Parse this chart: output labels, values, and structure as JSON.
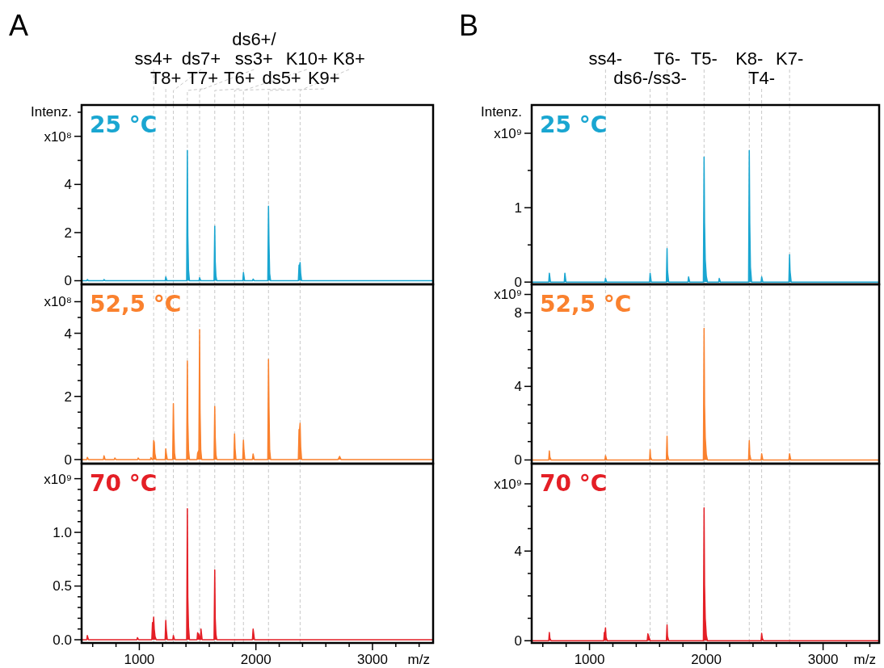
{
  "chart_data": [
    {
      "type": "area",
      "title": "25 °C",
      "ylabel": "Intenz.",
      "annotations": [
        "A"
      ],
      "xlim": [
        505,
        3520
      ],
      "ylim": [
        -0.15,
        7.3
      ],
      "tick_labels": "y",
      "yticks": [
        0,
        {
          "value": 1,
          "label": null
        },
        2,
        {
          "value": 3,
          "label": null
        },
        4,
        {
          "value": 5,
          "label": null
        },
        {
          "value": 6,
          "label": "x10⁸"
        },
        {
          "value": 7,
          "label": null
        }
      ],
      "x": [
        505,
        549,
        554,
        564,
        692,
        697,
        707,
        1222,
        1227,
        1237,
        1406,
        1412,
        1416,
        1422,
        1430,
        1512,
        1517,
        1527,
        1641,
        1647,
        1651,
        1657,
        1665,
        1888,
        1893,
        1903,
        1971,
        1976,
        1986,
        2102,
        2108,
        2112,
        2118,
        2126,
        2364,
        2370,
        2375,
        2379,
        2384,
        2392,
        3520
      ],
      "series": [
        {
          "color": "#1aa6d1",
          "values": [
            0,
            0,
            0.05,
            0,
            0,
            0.05,
            0,
            0,
            0.16,
            0,
            0,
            5.41,
            1.9,
            0.45,
            0,
            0,
            0.13,
            0,
            0,
            2.27,
            0.8,
            0.2,
            0,
            0,
            0.34,
            0,
            0,
            0.07,
            0,
            0,
            3.1,
            1.6,
            0.3,
            0,
            0,
            0.65,
            0.6,
            0.76,
            0.3,
            0,
            0
          ]
        }
      ],
      "ref_lines": [
        {
          "axis": "x",
          "value": 1123,
          "label": "ss4+",
          "color": "#c8c8c8",
          "line_style": "dashed"
        },
        {
          "axis": "x",
          "value": 1227,
          "label": "T8+",
          "color": "#c8c8c8",
          "line_style": "dashed"
        },
        {
          "axis": "x",
          "value": 1292,
          "label": "ds7+",
          "color": "#c8c8c8",
          "line_style": "dashed"
        },
        {
          "axis": "x",
          "value": 1412,
          "label": "T7+",
          "color": "#c8c8c8",
          "line_style": "dashed"
        },
        {
          "axis": "x",
          "value": 1517,
          "label": "ds6+/ ss3+",
          "color": "#c8c8c8",
          "line_style": "dashed"
        },
        {
          "axis": "x",
          "value": 1647,
          "label": "T6+",
          "color": "#c8c8c8",
          "line_style": "dashed"
        },
        {
          "axis": "x",
          "value": 1817,
          "label": "ds5+",
          "color": "#c8c8c8",
          "line_style": "dashed"
        },
        {
          "axis": "x",
          "value": 1893,
          "label": "K10+",
          "color": "#c8c8c8",
          "line_style": "dashed"
        },
        {
          "axis": "x",
          "value": 2108,
          "label": "K9+",
          "color": "#c8c8c8",
          "line_style": "dashed"
        },
        {
          "axis": "x",
          "value": 2379,
          "label": "K8+",
          "color": "#c8c8c8",
          "line_style": "dashed"
        }
      ]
    },
    {
      "type": "area",
      "title": "52,5 °C",
      "xlim": [
        505,
        3520
      ],
      "ylim": [
        -0.13,
        5.55
      ],
      "tick_labels": "y",
      "yticks": [
        0,
        {
          "value": 0.5,
          "label": null
        },
        {
          "value": 1,
          "label": null
        },
        {
          "value": 1.5,
          "label": null
        },
        2,
        {
          "value": 2.5,
          "label": null
        },
        {
          "value": 3,
          "label": null
        },
        {
          "value": 3.5,
          "label": null
        },
        4,
        {
          "value": 4.5,
          "label": null
        },
        {
          "value": 5,
          "label": "x10⁸"
        }
      ],
      "x": [
        505,
        549,
        554,
        564,
        692,
        697,
        707,
        785,
        790,
        800,
        985,
        990,
        1000,
        1095,
        1100,
        1110,
        1117,
        1123,
        1128,
        1133,
        1143,
        1222,
        1227,
        1231,
        1240,
        1286,
        1292,
        1296,
        1302,
        1310,
        1406,
        1412,
        1416,
        1422,
        1430,
        1495,
        1500,
        1511,
        1517,
        1521,
        1527,
        1535,
        1641,
        1647,
        1651,
        1657,
        1665,
        1811,
        1817,
        1821,
        1829,
        1887,
        1893,
        1897,
        1905,
        1970,
        1976,
        1986,
        2102,
        2108,
        2112,
        2118,
        2126,
        2364,
        2370,
        2374,
        2379,
        2384,
        2392,
        2705,
        2718,
        2730,
        3520
      ],
      "series": [
        {
          "color": "#fa812e",
          "values": [
            0,
            0,
            0.07,
            0,
            0,
            0.12,
            0,
            0,
            0.05,
            0,
            0,
            0.05,
            0,
            0,
            0.06,
            0,
            0,
            0.6,
            0.55,
            0.2,
            0,
            0,
            0.34,
            0.2,
            0,
            0,
            1.77,
            0.9,
            0.2,
            0,
            0,
            3.12,
            1.2,
            0.3,
            0,
            0,
            0.2,
            0.3,
            4.12,
            1.5,
            0.3,
            0,
            0,
            1.68,
            0.7,
            0.15,
            0,
            0,
            0.81,
            0.35,
            0,
            0,
            0.61,
            0.3,
            0,
            0,
            0.18,
            0,
            0,
            3.17,
            1.7,
            0.3,
            0,
            0,
            0.95,
            0.9,
            1.15,
            0.4,
            0,
            0,
            0.1,
            0,
            0
          ]
        }
      ],
      "ref_lines": [
        {
          "axis": "x",
          "value": 1123,
          "color": "#c8c8c8",
          "line_style": "dashed"
        },
        {
          "axis": "x",
          "value": 1227,
          "color": "#c8c8c8",
          "line_style": "dashed"
        },
        {
          "axis": "x",
          "value": 1292,
          "color": "#c8c8c8",
          "line_style": "dashed"
        },
        {
          "axis": "x",
          "value": 1412,
          "color": "#c8c8c8",
          "line_style": "dashed"
        },
        {
          "axis": "x",
          "value": 1517,
          "color": "#c8c8c8",
          "line_style": "dashed"
        },
        {
          "axis": "x",
          "value": 1647,
          "color": "#c8c8c8",
          "line_style": "dashed"
        },
        {
          "axis": "x",
          "value": 1817,
          "color": "#c8c8c8",
          "line_style": "dashed"
        },
        {
          "axis": "x",
          "value": 1893,
          "color": "#c8c8c8",
          "line_style": "dashed"
        },
        {
          "axis": "x",
          "value": 2108,
          "color": "#c8c8c8",
          "line_style": "dashed"
        },
        {
          "axis": "x",
          "value": 2379,
          "color": "#c8c8c8",
          "line_style": "dashed"
        }
      ]
    },
    {
      "type": "area",
      "title": "70 °C",
      "xlabel": "m/z",
      "xlim": [
        505,
        3520
      ],
      "ylim": [
        -0.03,
        1.64
      ],
      "xticks": [
        {
          "value": 600,
          "label": null
        },
        {
          "value": 800,
          "label": null
        },
        1000,
        {
          "value": 1200,
          "label": null
        },
        {
          "value": 1400,
          "label": null
        },
        {
          "value": 1600,
          "label": null
        },
        {
          "value": 1800,
          "label": null
        },
        2000,
        {
          "value": 2200,
          "label": null
        },
        {
          "value": 2400,
          "label": null
        },
        {
          "value": 2600,
          "label": null
        },
        {
          "value": 2800,
          "label": null
        },
        3000,
        {
          "value": 3200,
          "label": null
        },
        {
          "value": 3400,
          "label": null
        }
      ],
      "yticks": [
        {
          "value": 0,
          "label": "0.0"
        },
        {
          "value": 0.1,
          "label": null
        },
        {
          "value": 0.2,
          "label": null
        },
        {
          "value": 0.3,
          "label": null
        },
        {
          "value": 0.4,
          "label": null
        },
        {
          "value": 0.5,
          "label": "0.5"
        },
        {
          "value": 0.6,
          "label": null
        },
        {
          "value": 0.7,
          "label": null
        },
        {
          "value": 0.8,
          "label": null
        },
        {
          "value": 0.9,
          "label": null
        },
        {
          "value": 1,
          "label": "1.0"
        },
        {
          "value": 1.1,
          "label": null
        },
        {
          "value": 1.2,
          "label": null
        },
        {
          "value": 1.3,
          "label": null
        },
        {
          "value": 1.4,
          "label": null
        },
        {
          "value": 1.5,
          "label": "x10⁹"
        }
      ],
      "x": [
        505,
        549,
        554,
        564,
        979,
        984,
        994,
        1107,
        1113,
        1118,
        1123,
        1128,
        1135,
        1145,
        1221,
        1227,
        1231,
        1240,
        1287,
        1292,
        1302,
        1406,
        1412,
        1416,
        1422,
        1430,
        1495,
        1500,
        1510,
        1523,
        1529,
        1539,
        1641,
        1647,
        1651,
        1657,
        1665,
        1970,
        1976,
        1988,
        3520
      ],
      "series": [
        {
          "color": "#e41f26",
          "values": [
            0,
            0,
            0.04,
            0,
            0,
            0.02,
            0,
            0,
            0.16,
            0.12,
            0.21,
            0.1,
            0.03,
            0,
            0,
            0.18,
            0.1,
            0,
            0,
            0.04,
            0,
            0,
            1.22,
            0.4,
            0.12,
            0,
            0,
            0.065,
            0.05,
            0,
            0.1,
            0,
            0,
            0.65,
            0.2,
            0.05,
            0,
            0,
            0.1,
            0,
            0
          ]
        }
      ],
      "ref_lines": [
        {
          "axis": "x",
          "value": 1123,
          "color": "#c8c8c8",
          "line_style": "dashed"
        },
        {
          "axis": "x",
          "value": 1227,
          "color": "#c8c8c8",
          "line_style": "dashed"
        },
        {
          "axis": "x",
          "value": 1292,
          "color": "#c8c8c8",
          "line_style": "dashed"
        },
        {
          "axis": "x",
          "value": 1412,
          "color": "#c8c8c8",
          "line_style": "dashed"
        },
        {
          "axis": "x",
          "value": 1517,
          "color": "#c8c8c8",
          "line_style": "dashed"
        },
        {
          "axis": "x",
          "value": 1647,
          "color": "#c8c8c8",
          "line_style": "dashed"
        },
        {
          "axis": "x",
          "value": 1817,
          "color": "#c8c8c8",
          "line_style": "dashed"
        },
        {
          "axis": "x",
          "value": 1893,
          "color": "#c8c8c8",
          "line_style": "dashed"
        },
        {
          "axis": "x",
          "value": 2108,
          "color": "#c8c8c8",
          "line_style": "dashed"
        },
        {
          "axis": "x",
          "value": 2379,
          "color": "#c8c8c8",
          "line_style": "dashed"
        }
      ]
    },
    {
      "type": "area",
      "title": "25 °C",
      "ylabel": "Intenz.",
      "annotations": [
        "B"
      ],
      "xlim": [
        505,
        3480
      ],
      "ylim": [
        -0.03,
        2.38
      ],
      "tick_labels": "y",
      "yticks": [
        0,
        {
          "value": 0.5,
          "label": null
        },
        1,
        {
          "value": 1.5,
          "label": null
        },
        {
          "value": 2,
          "label": "x10⁹"
        }
      ],
      "x": [
        505,
        651,
        656,
        666,
        784,
        789,
        799,
        1132,
        1137,
        1147,
        1514,
        1519,
        1529,
        1658,
        1664,
        1668,
        1678,
        1843,
        1848,
        1858,
        1975,
        1981,
        1985,
        1991,
        2000,
        2010,
        2106,
        2111,
        2121,
        2362,
        2368,
        2372,
        2378,
        2388,
        2469,
        2474,
        2484,
        2707,
        2713,
        2717,
        2727,
        3480
      ],
      "series": [
        {
          "color": "#1aa6d1",
          "values": [
            0,
            0,
            0.12,
            0,
            0,
            0.12,
            0,
            0,
            0.05,
            0,
            0,
            0.12,
            0,
            0,
            0.45,
            0.15,
            0,
            0,
            0.07,
            0,
            0,
            1.68,
            0.8,
            0.3,
            0.08,
            0,
            0,
            0.05,
            0,
            0,
            1.77,
            0.8,
            0.2,
            0,
            0,
            0.07,
            0,
            0,
            0.37,
            0.15,
            0,
            0
          ]
        }
      ],
      "ref_lines": [
        {
          "axis": "x",
          "value": 1137,
          "label": "ss4-",
          "color": "#c8c8c8",
          "line_style": "dashed"
        },
        {
          "axis": "x",
          "value": 1519,
          "label": "ds6-/ss3-",
          "color": "#c8c8c8",
          "line_style": "dashed"
        },
        {
          "axis": "x",
          "value": 1664,
          "label": "T6-",
          "color": "#c8c8c8",
          "line_style": "dashed"
        },
        {
          "axis": "x",
          "value": 1981,
          "label": "T5-",
          "color": "#c8c8c8",
          "line_style": "dashed"
        },
        {
          "axis": "x",
          "value": 2368,
          "label": "K8-",
          "color": "#c8c8c8",
          "line_style": "dashed"
        },
        {
          "axis": "x",
          "value": 2474,
          "label": "T4-",
          "color": "#c8c8c8",
          "line_style": "dashed"
        },
        {
          "axis": "x",
          "value": 2713,
          "label": "K7-",
          "color": "#c8c8c8",
          "line_style": "dashed"
        }
      ]
    },
    {
      "type": "area",
      "title": "52,5 °C",
      "xlim": [
        505,
        3480
      ],
      "ylim": [
        -0.2,
        9.55
      ],
      "tick_labels": "y",
      "yticks": [
        0,
        {
          "value": 1,
          "label": null
        },
        {
          "value": 2,
          "label": null
        },
        {
          "value": 3,
          "label": null
        },
        4,
        {
          "value": 5,
          "label": null
        },
        {
          "value": 6,
          "label": null
        },
        {
          "value": 7,
          "label": null
        },
        8,
        {
          "value": 9,
          "label": "x10⁹"
        }
      ],
      "x": [
        505,
        651,
        656,
        661,
        671,
        1132,
        1137,
        1147,
        1514,
        1519,
        1523,
        1533,
        1658,
        1664,
        1668,
        1678,
        1975,
        1981,
        1985,
        1991,
        2000,
        2010,
        2362,
        2368,
        2372,
        2382,
        2469,
        2474,
        2484,
        2707,
        2713,
        2723,
        3480
      ],
      "series": [
        {
          "color": "#fa812e",
          "values": [
            0,
            0,
            0.49,
            0.15,
            0,
            0,
            0.24,
            0,
            0,
            0.56,
            0.15,
            0,
            0,
            1.29,
            0.3,
            0,
            0,
            7.16,
            3,
            1.2,
            0.3,
            0,
            0,
            1.05,
            0.3,
            0,
            0,
            0.34,
            0,
            0,
            0.34,
            0,
            0
          ]
        }
      ],
      "ref_lines": [
        {
          "axis": "x",
          "value": 1137,
          "color": "#c8c8c8",
          "line_style": "dashed"
        },
        {
          "axis": "x",
          "value": 1519,
          "color": "#c8c8c8",
          "line_style": "dashed"
        },
        {
          "axis": "x",
          "value": 1664,
          "color": "#c8c8c8",
          "line_style": "dashed"
        },
        {
          "axis": "x",
          "value": 1981,
          "color": "#c8c8c8",
          "line_style": "dashed"
        },
        {
          "axis": "x",
          "value": 2368,
          "color": "#c8c8c8",
          "line_style": "dashed"
        },
        {
          "axis": "x",
          "value": 2474,
          "color": "#c8c8c8",
          "line_style": "dashed"
        },
        {
          "axis": "x",
          "value": 2713,
          "color": "#c8c8c8",
          "line_style": "dashed"
        }
      ]
    },
    {
      "type": "area",
      "title": "70 °C",
      "xlabel": "m/z",
      "xlim": [
        505,
        3480
      ],
      "ylim": [
        -0.1,
        7.9
      ],
      "xticks": [
        {
          "value": 600,
          "label": null
        },
        {
          "value": 800,
          "label": null
        },
        1000,
        {
          "value": 1200,
          "label": null
        },
        {
          "value": 1400,
          "label": null
        },
        {
          "value": 1600,
          "label": null
        },
        {
          "value": 1800,
          "label": null
        },
        2000,
        {
          "value": 2200,
          "label": null
        },
        {
          "value": 2400,
          "label": null
        },
        {
          "value": 2600,
          "label": null
        },
        {
          "value": 2800,
          "label": null
        },
        3000,
        {
          "value": 3200,
          "label": null
        },
        {
          "value": 3400,
          "label": null
        }
      ],
      "yticks": [
        0,
        {
          "value": 1,
          "label": null
        },
        {
          "value": 2,
          "label": null
        },
        {
          "value": 3,
          "label": null
        },
        4,
        {
          "value": 5,
          "label": null
        },
        {
          "value": 6,
          "label": null
        },
        {
          "value": 7,
          "label": "x10⁹"
        }
      ],
      "x": [
        505,
        651,
        656,
        661,
        671,
        1122,
        1127,
        1132,
        1137,
        1142,
        1152,
        1494,
        1500,
        1510,
        1520,
        1658,
        1664,
        1668,
        1678,
        1975,
        1981,
        1985,
        1991,
        2000,
        2010,
        2469,
        2474,
        2480,
        2490,
        3480
      ],
      "series": [
        {
          "color": "#e41f26",
          "values": [
            0,
            0,
            0.37,
            0.1,
            0,
            0,
            0.37,
            0.3,
            0.58,
            0.15,
            0,
            0,
            0.31,
            0.15,
            0,
            0,
            0.7,
            0.2,
            0,
            0,
            5.93,
            2.5,
            1,
            0.25,
            0,
            0,
            0.33,
            0.1,
            0,
            0
          ]
        }
      ],
      "ref_lines": [
        {
          "axis": "x",
          "value": 1137,
          "color": "#c8c8c8",
          "line_style": "dashed"
        },
        {
          "axis": "x",
          "value": 1519,
          "color": "#c8c8c8",
          "line_style": "dashed"
        },
        {
          "axis": "x",
          "value": 1664,
          "color": "#c8c8c8",
          "line_style": "dashed"
        },
        {
          "axis": "x",
          "value": 1981,
          "color": "#c8c8c8",
          "line_style": "dashed"
        },
        {
          "axis": "x",
          "value": 2368,
          "color": "#c8c8c8",
          "line_style": "dashed"
        },
        {
          "axis": "x",
          "value": 2474,
          "color": "#c8c8c8",
          "line_style": "dashed"
        },
        {
          "axis": "x",
          "value": 2713,
          "color": "#c8c8c8",
          "line_style": "dashed"
        }
      ]
    }
  ]
}
